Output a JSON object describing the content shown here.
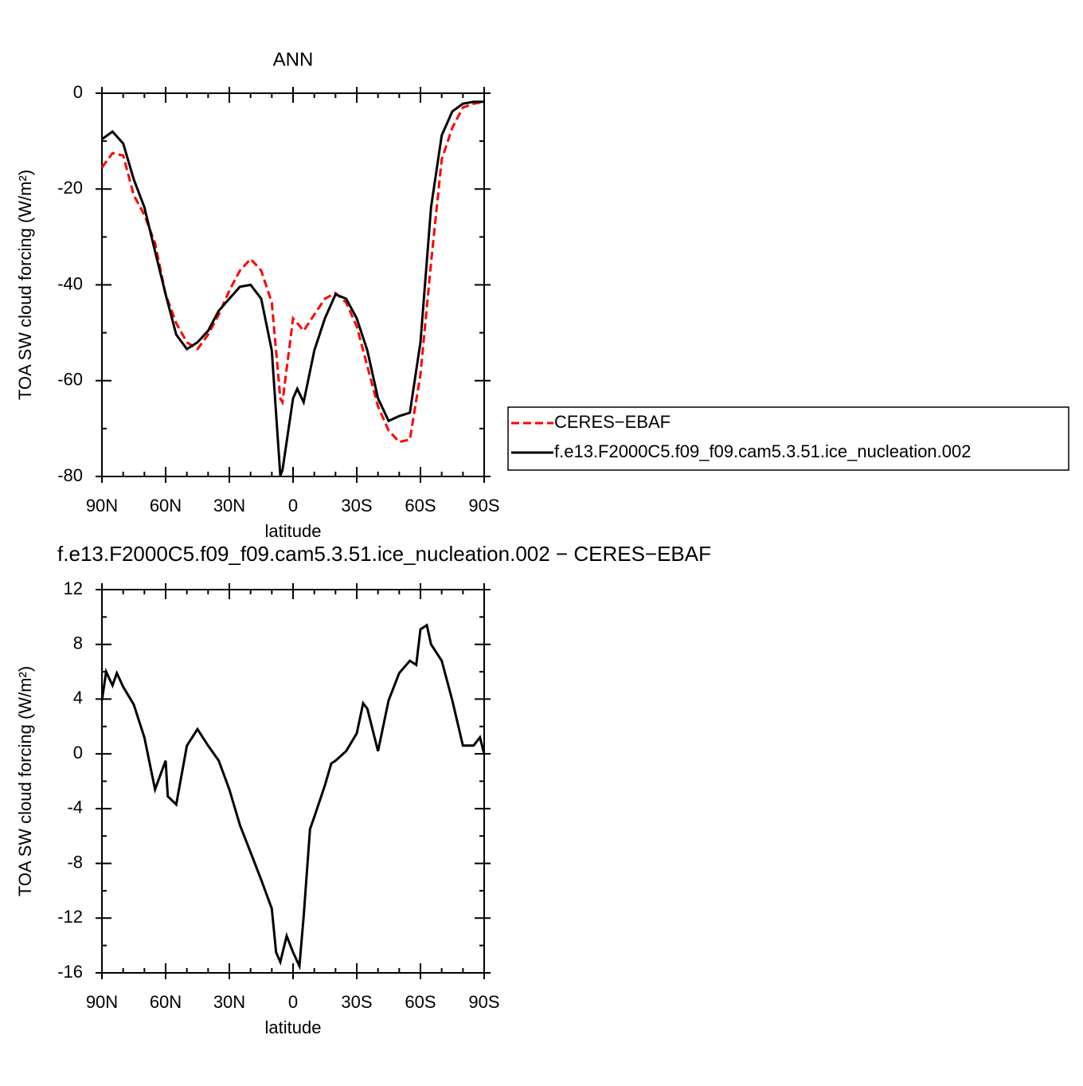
{
  "chart_data": [
    {
      "type": "line",
      "title": "ANN",
      "xlabel": "latitude",
      "ylabel": "TOA SW cloud forcing (W/m²)",
      "x": [
        90,
        85,
        80,
        75,
        70,
        65,
        60,
        55,
        50,
        45,
        40,
        35,
        30,
        25,
        20,
        15,
        10,
        6,
        5,
        0,
        -2,
        -5,
        -10,
        -15,
        -20,
        -25,
        -30,
        -35,
        -40,
        -45,
        -50,
        -55,
        -60,
        -65,
        -70,
        -75,
        -80,
        -85,
        -90
      ],
      "series": [
        {
          "name": "CERES−EBAF",
          "color": "#ff0000",
          "dash": true,
          "values": [
            -15.5,
            -12.5,
            -13,
            -21.3,
            -25.4,
            -31.3,
            -42,
            -48,
            -52,
            -53.4,
            -50.4,
            -46.2,
            -41.2,
            -37,
            -34.6,
            -37,
            -43.7,
            -63.7,
            -64.5,
            -47,
            -48,
            -49.6,
            -46.2,
            -42.9,
            -41.7,
            -43.7,
            -48.7,
            -57,
            -65.4,
            -70.4,
            -72.8,
            -72.3,
            -58.7,
            -35.4,
            -13.8,
            -7.2,
            -3,
            -2.2,
            -1.8
          ]
        },
        {
          "name": "f.e13.F2000C5.f09_f09.cam5.3.51.ice_nucleation.002",
          "color": "#000000",
          "dash": false,
          "values": [
            -9.6,
            -8,
            -10.5,
            -18,
            -23.8,
            -33,
            -42,
            -50.4,
            -53.4,
            -52,
            -49.6,
            -45.4,
            -42.9,
            -40.4,
            -40,
            -42.9,
            -53.7,
            -79.8,
            -78.7,
            -63.7,
            -61.7,
            -64.5,
            -53.7,
            -47,
            -42,
            -42.9,
            -47,
            -53.7,
            -63.7,
            -68.4,
            -67.4,
            -66.7,
            -52,
            -23.8,
            -8.8,
            -3.8,
            -2.2,
            -1.8,
            -1.8
          ]
        }
      ],
      "xlim": [
        90,
        -90
      ],
      "xticks": [
        {
          "value": 90,
          "label": "90N"
        },
        {
          "value": 60,
          "label": "60N"
        },
        {
          "value": 30,
          "label": "30N"
        },
        0,
        {
          "value": -30,
          "label": "30S"
        },
        {
          "value": -60,
          "label": "60S"
        },
        {
          "value": -90,
          "label": "90S"
        }
      ],
      "ylim": [
        -80,
        0
      ],
      "yticks": [
        -80,
        -60,
        -40,
        -20,
        0
      ],
      "legend": "right"
    },
    {
      "type": "line",
      "title": "f.e13.F2000C5.f09_f09.cam5.3.51.ice_nucleation.002 − CERES−EBAF",
      "xlabel": "latitude",
      "ylabel": "TOA SW cloud forcing (W/m²)",
      "x": [
        90,
        88,
        85,
        83,
        80,
        75,
        70,
        65,
        60,
        59,
        55,
        50,
        45,
        40,
        35,
        30,
        25,
        20,
        15,
        10,
        8,
        6,
        3,
        0,
        -3,
        -5,
        -8,
        -10,
        -15,
        -18,
        -20,
        -25,
        -30,
        -33,
        -35,
        -40,
        -45,
        -50,
        -55,
        -58,
        -60,
        -63,
        -65,
        -70,
        -75,
        -80,
        -85,
        -88,
        -90
      ],
      "color": "#000000",
      "values": [
        3.9,
        6,
        5,
        5.9,
        4.9,
        3.6,
        1.2,
        -2.6,
        -0.5,
        -3.1,
        -3.7,
        0.6,
        1.8,
        0.6,
        -0.5,
        -2.6,
        -5.2,
        -7.2,
        -9.2,
        -11.3,
        -14.5,
        -15.2,
        -13.3,
        -14.5,
        -15.5,
        -11.9,
        -5.5,
        -4.6,
        -2.3,
        -0.7,
        -0.5,
        0.2,
        1.5,
        3.7,
        3.3,
        0.2,
        3.9,
        5.9,
        6.8,
        6.5,
        9.1,
        9.4,
        8,
        6.8,
        3.9,
        0.6,
        0.6,
        1.2,
        0
      ],
      "xlim": [
        90,
        -90
      ],
      "xticks": [
        {
          "value": 90,
          "label": "90N"
        },
        {
          "value": 60,
          "label": "60N"
        },
        {
          "value": 30,
          "label": "30N"
        },
        0,
        {
          "value": -30,
          "label": "30S"
        },
        {
          "value": -60,
          "label": "60S"
        },
        {
          "value": -90,
          "label": "90S"
        }
      ],
      "ylim": [
        -16,
        12
      ],
      "yticks": [
        -16,
        -12,
        -8,
        -4,
        0,
        4,
        8,
        12
      ]
    }
  ]
}
